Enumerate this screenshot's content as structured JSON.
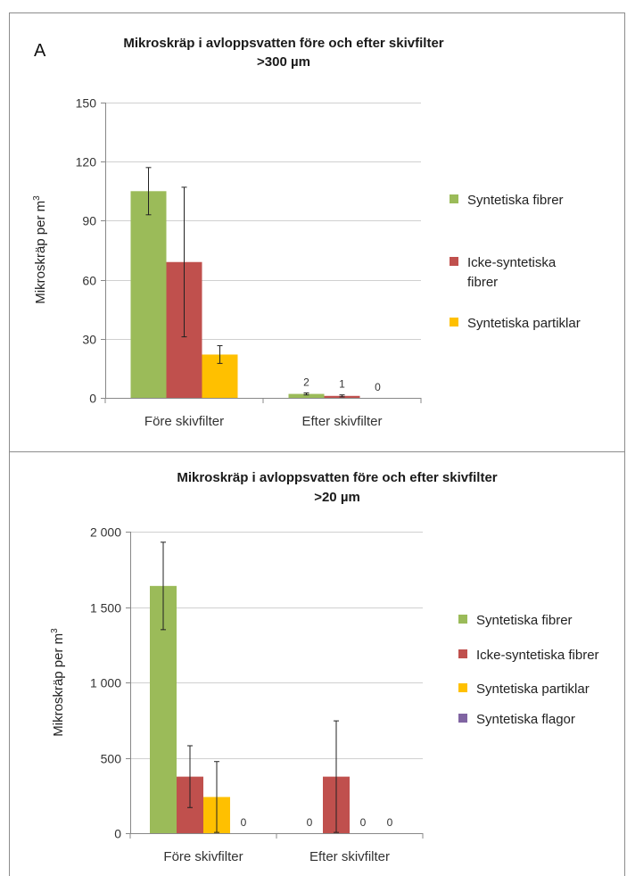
{
  "chart_data": [
    {
      "type": "bar",
      "panel_label": "A",
      "title": "Mikroskräp i avloppsvatten före och efter skivfilter",
      "subtitle": ">300 µm",
      "ylabel": "Mikroskräp per m",
      "ylabel_sup": "3",
      "categories": [
        "Före skivfilter",
        "Efter skivfilter"
      ],
      "ylim": [
        0,
        150
      ],
      "yticks": [
        0,
        30,
        60,
        90,
        120,
        150
      ],
      "ytick_labels": [
        "0",
        "30",
        "60",
        "90",
        "120",
        "150"
      ],
      "grid": true,
      "legend_position": "right",
      "series": [
        {
          "name": "Syntetiska fibrer",
          "color": "#9bbb59",
          "values": [
            105,
            2
          ],
          "error": [
            12,
            0.5
          ],
          "data_labels": [
            null,
            "2"
          ]
        },
        {
          "name": "Icke-syntetiska fibrer",
          "legend_lines": [
            "Icke-syntetiska",
            "fibrer"
          ],
          "color": "#c0504d",
          "values": [
            69,
            1
          ],
          "error": [
            38,
            0.5
          ],
          "data_labels": [
            null,
            "1"
          ]
        },
        {
          "name": "Syntetiska partiklar",
          "color": "#ffc000",
          "values": [
            22,
            0
          ],
          "error": [
            4.5,
            0
          ],
          "data_labels": [
            null,
            "0"
          ]
        }
      ]
    },
    {
      "type": "bar",
      "title": "Mikroskräp i avloppsvatten före och efter skivfilter",
      "subtitle": ">20 µm",
      "ylabel": "Mikroskräp per m",
      "ylabel_sup": "3",
      "categories": [
        "Före skivfilter",
        "Efter skivfilter"
      ],
      "ylim": [
        0,
        2000
      ],
      "yticks": [
        0,
        500,
        1000,
        1500,
        2000
      ],
      "ytick_labels": [
        "0",
        "500",
        "1 000",
        "1 500",
        "2 000"
      ],
      "grid": true,
      "legend_position": "right",
      "series": [
        {
          "name": "Syntetiska fibrer",
          "color": "#9bbb59",
          "values": [
            1640,
            0
          ],
          "error": [
            290,
            0
          ],
          "data_labels": [
            null,
            "0"
          ]
        },
        {
          "name": "Icke-syntetiska fibrer",
          "color": "#c0504d",
          "values": [
            375,
            375
          ],
          "error": [
            205,
            370
          ],
          "data_labels": [
            null,
            null
          ]
        },
        {
          "name": "Syntetiska partiklar",
          "color": "#ffc000",
          "values": [
            240,
            0
          ],
          "error": [
            235,
            0
          ],
          "data_labels": [
            null,
            "0"
          ]
        },
        {
          "name": "Syntetiska flagor",
          "color": "#8064a2",
          "values": [
            0,
            0
          ],
          "error": [
            0,
            0
          ],
          "data_labels": [
            "0",
            "0"
          ]
        }
      ]
    }
  ]
}
